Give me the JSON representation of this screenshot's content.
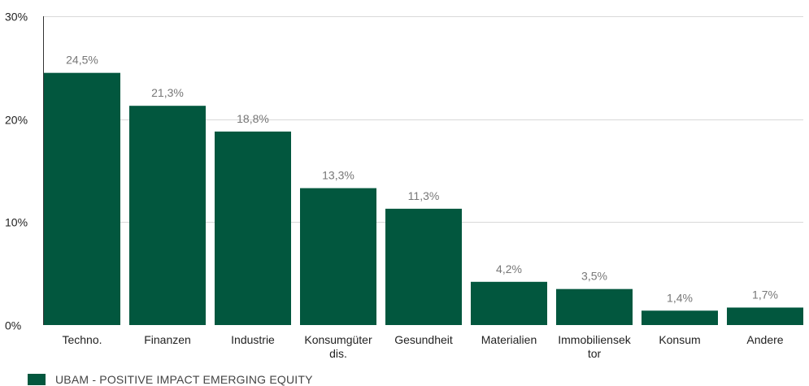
{
  "chart_data": {
    "type": "bar",
    "categories": [
      [
        "Techno."
      ],
      [
        "Finanzen"
      ],
      [
        "Industrie"
      ],
      [
        "Konsumgüter",
        "dis."
      ],
      [
        "Gesundheit"
      ],
      [
        "Materialien"
      ],
      [
        "Immobiliensek",
        "tor"
      ],
      [
        "Konsum"
      ],
      [
        "Andere"
      ]
    ],
    "series": [
      {
        "name": "UBAM - POSITIVE IMPACT EMERGING EQUITY",
        "values": [
          24.5,
          21.3,
          18.8,
          13.3,
          11.3,
          4.2,
          3.5,
          1.4,
          1.7
        ],
        "labels": [
          "24,5%",
          "21,3%",
          "18,8%",
          "13,3%",
          "11,3%",
          "4,2%",
          "3,5%",
          "1,4%",
          "1,7%"
        ],
        "color": "#02573e"
      }
    ],
    "ylim": [
      0,
      30
    ],
    "yticks": [
      {
        "value": 0,
        "label": "0%"
      },
      {
        "value": 10,
        "label": "10%"
      },
      {
        "value": 20,
        "label": "20%"
      },
      {
        "value": 30,
        "label": "30%"
      }
    ],
    "grid": true,
    "legend": "bottom-left"
  }
}
